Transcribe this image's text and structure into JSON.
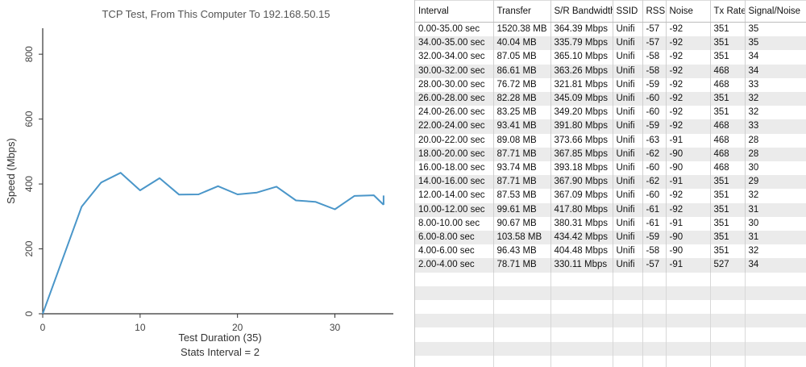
{
  "chart_data": {
    "type": "line",
    "title": "TCP Test,  From This Computer To 192.168.50.15",
    "xlabel": "Test Duration (35)",
    "subtitle": "Stats Interval = 2",
    "ylabel": "Speed (Mbps)",
    "xlim": [
      0,
      36
    ],
    "ylim": [
      0,
      880
    ],
    "xticks": [
      0,
      10,
      20,
      30
    ],
    "yticks": [
      0,
      200,
      400,
      600,
      800
    ],
    "line_color": "#4a96c9",
    "series": [
      {
        "x": [
          0,
          4,
          6,
          8,
          10,
          12,
          14,
          16,
          18,
          20,
          22,
          24,
          26,
          28,
          30,
          32,
          34,
          35
        ],
        "values": [
          0,
          330.11,
          404.48,
          434.42,
          380.31,
          417.8,
          367.09,
          367.9,
          393.18,
          367.85,
          373.66,
          391.8,
          349.2,
          345.09,
          321.81,
          363.26,
          365.1,
          335.79
        ]
      },
      {
        "x": [
          35,
          35
        ],
        "values": [
          335.79,
          364.39
        ]
      }
    ]
  },
  "table": {
    "columns": [
      "Interval",
      "Transfer",
      "S/R Bandwidth",
      "SSID",
      "RSSI",
      "Noise",
      "Tx Rate",
      "Signal/Noise"
    ],
    "rows": [
      [
        "0.00-35.00 sec",
        "1520.38 MB",
        "364.39 Mbps",
        "Unifi",
        "-57",
        "-92",
        "351",
        "35"
      ],
      [
        "34.00-35.00 sec",
        "40.04 MB",
        "335.79 Mbps",
        "Unifi",
        "-57",
        "-92",
        "351",
        "35"
      ],
      [
        "32.00-34.00 sec",
        "87.05 MB",
        "365.10 Mbps",
        "Unifi",
        "-58",
        "-92",
        "351",
        "34"
      ],
      [
        "30.00-32.00 sec",
        "86.61 MB",
        "363.26 Mbps",
        "Unifi",
        "-58",
        "-92",
        "468",
        "34"
      ],
      [
        "28.00-30.00 sec",
        "76.72 MB",
        "321.81 Mbps",
        "Unifi",
        "-59",
        "-92",
        "468",
        "33"
      ],
      [
        "26.00-28.00 sec",
        "82.28 MB",
        "345.09 Mbps",
        "Unifi",
        "-60",
        "-92",
        "351",
        "32"
      ],
      [
        "24.00-26.00 sec",
        "83.25 MB",
        "349.20 Mbps",
        "Unifi",
        "-60",
        "-92",
        "351",
        "32"
      ],
      [
        "22.00-24.00 sec",
        "93.41 MB",
        "391.80 Mbps",
        "Unifi",
        "-59",
        "-92",
        "468",
        "33"
      ],
      [
        "20.00-22.00 sec",
        "89.08 MB",
        "373.66 Mbps",
        "Unifi",
        "-63",
        "-91",
        "468",
        "28"
      ],
      [
        "18.00-20.00 sec",
        "87.71 MB",
        "367.85 Mbps",
        "Unifi",
        "-62",
        "-90",
        "468",
        "28"
      ],
      [
        "16.00-18.00 sec",
        "93.74 MB",
        "393.18 Mbps",
        "Unifi",
        "-60",
        "-90",
        "468",
        "30"
      ],
      [
        "14.00-16.00 sec",
        "87.71 MB",
        "367.90 Mbps",
        "Unifi",
        "-62",
        "-91",
        "351",
        "29"
      ],
      [
        "12.00-14.00 sec",
        "87.53 MB",
        "367.09 Mbps",
        "Unifi",
        "-60",
        "-92",
        "351",
        "32"
      ],
      [
        "10.00-12.00 sec",
        "99.61 MB",
        "417.80 Mbps",
        "Unifi",
        "-61",
        "-92",
        "351",
        "31"
      ],
      [
        "8.00-10.00 sec",
        "90.67 MB",
        "380.31 Mbps",
        "Unifi",
        "-61",
        "-91",
        "351",
        "30"
      ],
      [
        "6.00-8.00 sec",
        "103.58 MB",
        "434.42 Mbps",
        "Unifi",
        "-59",
        "-90",
        "351",
        "31"
      ],
      [
        "4.00-6.00 sec",
        "96.43 MB",
        "404.48 Mbps",
        "Unifi",
        "-58",
        "-90",
        "351",
        "32"
      ],
      [
        "2.00-4.00 sec",
        "78.71 MB",
        "330.11 Mbps",
        "Unifi",
        "-57",
        "-91",
        "527",
        "34"
      ]
    ]
  }
}
